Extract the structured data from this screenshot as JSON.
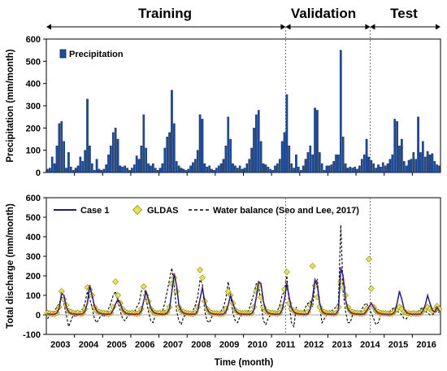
{
  "chart_data": [
    {
      "type": "bar",
      "title": "",
      "phases": [
        {
          "label": "Training",
          "start": "2003-01",
          "end": "2011-06"
        },
        {
          "label": "Validation",
          "start": "2011-07",
          "end": "2014-06"
        },
        {
          "label": "Test",
          "start": "2014-07",
          "end": "2016-12"
        }
      ],
      "xlabel": "",
      "ylabel": "Precipitation (mm/month)",
      "ylim": [
        0,
        600
      ],
      "yticks": [
        0,
        100,
        200,
        300,
        400,
        500,
        600
      ],
      "legend_position": "top-left",
      "colors": {
        "bar_fill": "#1f4e9c",
        "bar_edge": "#0b1f4a"
      },
      "series": [
        {
          "name": "Precipitation",
          "start_month": "2003-01",
          "values": [
            15,
            20,
            70,
            40,
            120,
            220,
            230,
            140,
            20,
            90,
            25,
            10,
            20,
            30,
            70,
            50,
            100,
            330,
            120,
            40,
            10,
            60,
            15,
            10,
            15,
            35,
            80,
            120,
            180,
            200,
            150,
            30,
            25,
            30,
            20,
            10,
            20,
            35,
            75,
            60,
            120,
            260,
            110,
            40,
            30,
            40,
            20,
            10,
            20,
            40,
            110,
            160,
            180,
            370,
            220,
            50,
            30,
            20,
            15,
            10,
            15,
            30,
            45,
            60,
            100,
            260,
            240,
            40,
            25,
            30,
            15,
            10,
            20,
            30,
            40,
            60,
            120,
            250,
            150,
            40,
            30,
            20,
            30,
            15,
            20,
            40,
            60,
            110,
            200,
            260,
            280,
            140,
            40,
            35,
            25,
            15,
            10,
            30,
            40,
            60,
            140,
            180,
            350,
            120,
            40,
            20,
            80,
            25,
            10,
            30,
            60,
            90,
            120,
            80,
            290,
            280,
            90,
            40,
            10,
            30,
            30,
            35,
            50,
            80,
            80,
            550,
            160,
            40,
            20,
            25,
            20,
            25,
            15,
            30,
            60,
            80,
            150,
            70,
            55,
            40,
            20,
            35,
            25,
            45,
            30,
            40,
            60,
            80,
            240,
            230,
            120,
            150,
            50,
            30,
            55,
            60,
            90,
            60,
            250,
            90,
            140,
            70,
            95,
            80,
            85,
            50,
            35,
            30
          ]
        }
      ]
    },
    {
      "type": "line",
      "title": "",
      "xlabel": "Time (month)",
      "ylabel": "Total discharge (mm/month)",
      "ylim": [
        -100,
        600
      ],
      "yticks": [
        -100,
        0,
        100,
        200,
        300,
        400,
        500,
        600
      ],
      "xticks": [
        "2003",
        "2004",
        "2005",
        "2006",
        "2007",
        "2008",
        "2009",
        "2010",
        "2011",
        "2012",
        "2013",
        "2014",
        "2015",
        "2016"
      ],
      "legend_position": "top",
      "colors": {
        "case1": "#1c1c8c",
        "gldas_fill": "#e3e35a",
        "gldas_edge": "#8c8c1a",
        "water_balance": "#000000",
        "marker_dot": "#c82828"
      },
      "series": [
        {
          "name": "Case 1",
          "style": "solid",
          "start_month": "2003-01",
          "values": [
            5,
            3,
            2,
            3,
            10,
            35,
            110,
            100,
            40,
            15,
            8,
            5,
            4,
            3,
            3,
            5,
            20,
            60,
            150,
            100,
            45,
            20,
            10,
            6,
            4,
            3,
            3,
            6,
            25,
            55,
            80,
            60,
            25,
            12,
            6,
            4,
            4,
            3,
            3,
            5,
            20,
            70,
            120,
            80,
            35,
            15,
            8,
            5,
            4,
            3,
            4,
            10,
            30,
            120,
            210,
            150,
            50,
            20,
            10,
            6,
            4,
            3,
            3,
            5,
            20,
            80,
            140,
            70,
            30,
            12,
            6,
            4,
            3,
            2,
            2,
            4,
            15,
            50,
            100,
            60,
            25,
            10,
            5,
            4,
            3,
            3,
            3,
            6,
            25,
            90,
            170,
            160,
            70,
            25,
            10,
            6,
            4,
            3,
            3,
            5,
            25,
            80,
            160,
            90,
            35,
            15,
            8,
            5,
            4,
            3,
            3,
            6,
            30,
            90,
            180,
            150,
            60,
            20,
            8,
            5,
            4,
            3,
            3,
            5,
            25,
            240,
            200,
            80,
            30,
            15,
            8,
            5,
            4,
            3,
            3,
            5,
            20,
            40,
            60,
            40,
            20,
            10,
            6,
            4,
            3,
            2,
            2,
            4,
            15,
            60,
            120,
            80,
            30,
            12,
            6,
            4,
            3,
            3,
            3,
            5,
            20,
            50,
            100,
            60,
            25,
            15,
            40,
            20
          ]
        },
        {
          "name": "GLDAS",
          "style": "markers",
          "start_month": "2003-01",
          "values": [
            10,
            8,
            5,
            5,
            10,
            40,
            120,
            80,
            50,
            20,
            15,
            10,
            8,
            10,
            5,
            8,
            30,
            140,
            130,
            100,
            40,
            20,
            15,
            10,
            10,
            8,
            5,
            10,
            40,
            170,
            100,
            60,
            30,
            15,
            10,
            8,
            10,
            8,
            5,
            8,
            30,
            145,
            100,
            70,
            30,
            15,
            10,
            8,
            10,
            8,
            10,
            15,
            40,
            160,
            190,
            120,
            40,
            20,
            15,
            10,
            8,
            6,
            5,
            10,
            40,
            230,
            190,
            70,
            30,
            15,
            10,
            8,
            8,
            6,
            5,
            8,
            30,
            120,
            100,
            60,
            25,
            15,
            10,
            8,
            10,
            8,
            8,
            10,
            40,
            120,
            150,
            90,
            40,
            20,
            15,
            10,
            10,
            8,
            6,
            10,
            40,
            130,
            220,
            60,
            30,
            20,
            15,
            10,
            10,
            8,
            8,
            15,
            50,
            250,
            150,
            90,
            40,
            20,
            15,
            10,
            10,
            8,
            6,
            10,
            40,
            170,
            140,
            100,
            40,
            20,
            15,
            10,
            10,
            8,
            6,
            10,
            30,
            285,
            135,
            40,
            20,
            15,
            10,
            8,
            8,
            6,
            5,
            8,
            20,
            30,
            40,
            30,
            15,
            10,
            8,
            6,
            8,
            6,
            6,
            10,
            20,
            30,
            40,
            30,
            20,
            25,
            45,
            30
          ]
        },
        {
          "name": "Water balance (Seo and Lee, 2017)",
          "style": "dashed",
          "start_month": "2003-01",
          "values": [
            -20,
            0,
            10,
            20,
            40,
            60,
            90,
            60,
            0,
            -60,
            -30,
            0,
            -10,
            0,
            20,
            30,
            60,
            120,
            80,
            40,
            -20,
            -40,
            -20,
            0,
            -10,
            10,
            30,
            60,
            100,
            120,
            70,
            20,
            -20,
            -30,
            -10,
            0,
            0,
            10,
            40,
            60,
            120,
            160,
            80,
            20,
            -30,
            -40,
            0,
            10,
            0,
            20,
            60,
            120,
            180,
            240,
            150,
            20,
            -30,
            -50,
            -10,
            0,
            0,
            10,
            20,
            50,
            90,
            180,
            160,
            20,
            -30,
            -40,
            -10,
            0,
            0,
            10,
            20,
            40,
            80,
            170,
            100,
            10,
            -30,
            -40,
            -10,
            0,
            0,
            10,
            30,
            70,
            110,
            160,
            150,
            60,
            -30,
            -50,
            -20,
            0,
            0,
            10,
            20,
            50,
            100,
            120,
            200,
            60,
            -40,
            -60,
            40,
            0,
            0,
            10,
            40,
            60,
            70,
            40,
            160,
            180,
            40,
            -40,
            -20,
            0,
            0,
            20,
            30,
            40,
            60,
            460,
            120,
            20,
            -40,
            -40,
            0,
            10,
            0,
            10,
            30,
            50,
            60,
            30,
            10,
            -20,
            -50,
            -40,
            0,
            10,
            0,
            10,
            20,
            30,
            40,
            20,
            10,
            0,
            -20,
            -20,
            0,
            10,
            0,
            10,
            20,
            30,
            40,
            20,
            10,
            0,
            0,
            10,
            20,
            10
          ]
        }
      ]
    }
  ]
}
